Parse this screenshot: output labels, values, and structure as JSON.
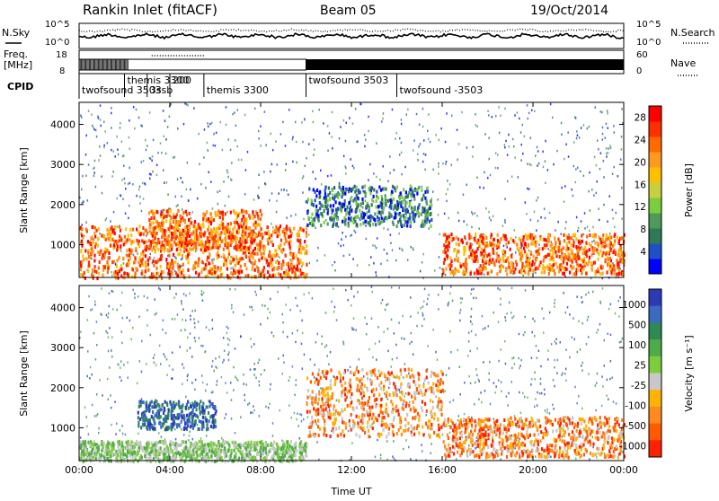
{
  "header": {
    "station": "Rankin Inlet (fitACF)",
    "beam": "Beam 05",
    "date": "19/Oct/2014"
  },
  "noise_panel": {
    "left_label": "N.Sky",
    "left_ticks": [
      "10^5",
      "10^0"
    ],
    "right_label": "N.Search",
    "right_ticks": [
      "10^5",
      "10^0"
    ]
  },
  "freq_panel": {
    "left_label_1": "Freq.",
    "left_label_2": "[MHz]",
    "left_ticks": [
      "18",
      "8"
    ],
    "right_label": "Nave",
    "right_ticks": [
      "60",
      "0"
    ]
  },
  "cpid_panel": {
    "label": "CPID",
    "programs": [
      {
        "name": "twofsound 3503",
        "start_h": 0.0
      },
      {
        "name": "themis 3300",
        "start_h": 2.0
      },
      {
        "name": "3ssb",
        "start_h": 3.0
      },
      {
        "name": "200",
        "start_h": 4.0
      },
      {
        "name": "themis 3300",
        "start_h": 5.5
      },
      {
        "name": "twofsound 3503",
        "start_h": 10.0
      },
      {
        "name": "twofsound -3503",
        "start_h": 14.0
      }
    ]
  },
  "chart_data": [
    {
      "type": "heatmap",
      "title": "",
      "quantity": "Power",
      "xlabel": "",
      "ylabel": "Slant Range [km]",
      "xlim_hours": [
        0,
        24
      ],
      "ylim_km": [
        180,
        4550
      ],
      "x_ticks": [
        0,
        4,
        8,
        12,
        16,
        20,
        24
      ],
      "y_ticks": [
        1000,
        2000,
        3000,
        4000
      ],
      "colorbar": {
        "label": "Power [dB]",
        "ticks": [
          "4",
          "8",
          "12",
          "16",
          "20",
          "24",
          "28"
        ],
        "colors": [
          "#0000ff",
          "#2050c8",
          "#2d7a55",
          "#4f9a5a",
          "#7ccd3c",
          "#c8d040",
          "#ffc000",
          "#ff9a1e",
          "#ff6a00",
          "#ff3000",
          "#ff0000"
        ]
      },
      "features": [
        {
          "t0": 0.0,
          "t1": 10.0,
          "r0": 200,
          "r1": 1500,
          "level": "high (20–28 dB)"
        },
        {
          "t0": 3.0,
          "t1": 8.0,
          "r0": 900,
          "r1": 1900,
          "level": "high (24–28 dB)"
        },
        {
          "t0": 16.0,
          "t1": 24.0,
          "r0": 300,
          "r1": 1300,
          "level": "high (20–28 dB)"
        },
        {
          "t0": 10.0,
          "t1": 15.5,
          "r0": 1500,
          "r1": 2500,
          "level": "low–medium (4–16 dB)"
        }
      ]
    },
    {
      "type": "heatmap",
      "title": "",
      "quantity": "Velocity",
      "xlabel": "Time UT",
      "ylabel": "Slant Range [km]",
      "xlim_hours": [
        0,
        24
      ],
      "ylim_km": [
        180,
        4550
      ],
      "x_ticks": [
        0,
        4,
        8,
        12,
        16,
        20,
        24
      ],
      "x_tick_labels": [
        "00:00",
        "04:00",
        "08:00",
        "12:00",
        "16:00",
        "20:00",
        "00:00"
      ],
      "y_ticks": [
        1000,
        2000,
        3000,
        4000
      ],
      "colorbar": {
        "label": "Velocity [m s⁻¹]",
        "ticks": [
          "1000",
          "500",
          "100",
          "25",
          "-25",
          "-100",
          "-500",
          "-1000"
        ],
        "colors": [
          "#2c3ab8",
          "#3b6bc0",
          "#2d8a55",
          "#4faa4a",
          "#7ccd3c",
          "#c8c8c8",
          "#ffb300",
          "#ff8a1e",
          "#ff5a00",
          "#ff2000"
        ]
      },
      "features": [
        {
          "t0": 2.5,
          "t1": 6.0,
          "r0": 1000,
          "r1": 1700,
          "level": "positive (+500–1000 m/s)"
        },
        {
          "t0": 10.0,
          "t1": 16.0,
          "r0": 800,
          "r1": 2500,
          "level": "negative (-100 to -500 m/s)"
        },
        {
          "t0": 16.0,
          "t1": 24.0,
          "r0": 300,
          "r1": 1300,
          "level": "negative (-25 to -500 m/s)"
        },
        {
          "t0": 0.0,
          "t1": 10.0,
          "r0": 200,
          "r1": 700,
          "level": "near zero / ground scatter"
        }
      ]
    }
  ]
}
